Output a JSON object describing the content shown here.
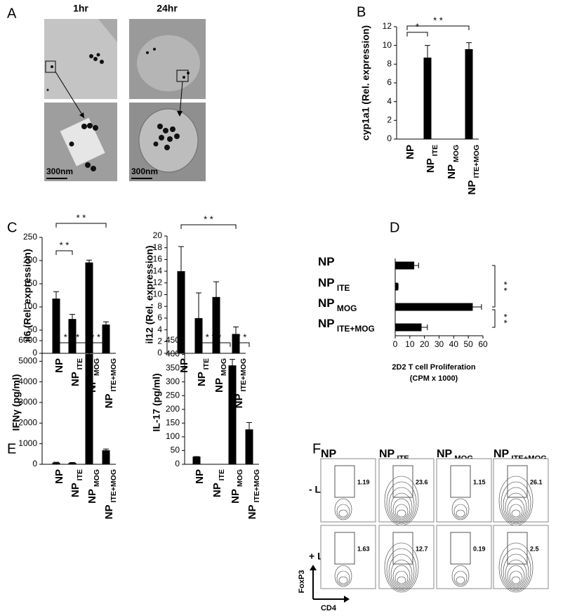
{
  "panel_labels": [
    "A",
    "B",
    "C",
    "D",
    "E",
    "F"
  ],
  "images": {
    "timepoints": [
      "1hr",
      "24hr"
    ],
    "scale_bars": [
      "300nm",
      "300nm"
    ]
  },
  "chart_data": [
    {
      "type": "bar",
      "ylabel": "cyp1a1 (Rel. expression)",
      "categories": [
        "NP",
        "NP ITE",
        "NP MOG",
        "NP ITE+MOG"
      ],
      "values": [
        0,
        8.7,
        0,
        9.6
      ],
      "errors": [
        0,
        1.3,
        0,
        0.7
      ],
      "color": "#000000",
      "ylim": [
        0,
        12
      ],
      "yticks": [
        0,
        2,
        4,
        6,
        8,
        10,
        12
      ],
      "significance": [
        "*",
        "* *"
      ]
    },
    {
      "type": "bar",
      "ylabel": "il6 (Rel. expression)",
      "categories": [
        "NP",
        "NP ITE",
        "NP MOG",
        "NP ITE+MOG"
      ],
      "values": [
        118,
        74,
        196,
        62
      ],
      "errors": [
        15,
        10,
        5,
        6
      ],
      "color": "#000000",
      "ylim": [
        0,
        250
      ],
      "yticks": [
        0,
        50,
        100,
        150,
        200,
        250
      ],
      "significance": [
        "* *",
        "* *"
      ]
    },
    {
      "type": "bar",
      "ylabel": "il12 (Rel. expression)",
      "categories": [
        "NP",
        "NP ITE",
        "NP MOG",
        "NP ITE+MOG"
      ],
      "values": [
        14,
        6,
        9.6,
        3.3
      ],
      "errors": [
        4.2,
        4.3,
        2.6,
        1.2
      ],
      "color": "#000000",
      "ylim": [
        0,
        20
      ],
      "yticks": [
        0,
        2,
        4,
        6,
        8,
        10,
        12,
        14,
        16,
        18,
        20
      ],
      "significance": [
        "* *"
      ]
    },
    {
      "type": "hbar",
      "xlabel": [
        "2D2 T cell  Proliferation",
        "(CPM  x  1000)"
      ],
      "categories": [
        "NP",
        "NP ITE",
        "NP MOG",
        "NP ITE+MOG"
      ],
      "values": [
        13,
        2,
        53,
        18
      ],
      "errors": [
        3,
        0,
        6,
        4
      ],
      "color": "#000000",
      "xlim": [
        0,
        60
      ],
      "xticks": [
        0,
        10,
        20,
        30,
        40,
        50,
        60
      ],
      "significance": [
        "* *",
        "* *"
      ]
    },
    {
      "type": "bar",
      "ylabel": "IFNγ (pg/ml)",
      "categories": [
        "NP",
        "NP ITE",
        "NP MOG",
        "NP ITE+MOG"
      ],
      "values": [
        80,
        70,
        5350,
        680
      ],
      "errors": [
        20,
        15,
        120,
        60
      ],
      "color": "#000000",
      "ylim": [
        0,
        6000
      ],
      "yticks": [
        0,
        1000,
        2000,
        3000,
        4000,
        5000,
        6000
      ],
      "significance": [
        "* * *",
        "* * *"
      ]
    },
    {
      "type": "bar",
      "ylabel": "IL-17 (pg/ml)",
      "categories": [
        "NP",
        "NP ITE",
        "NP MOG",
        "NP ITE+MOG"
      ],
      "values": [
        28,
        0,
        360,
        127
      ],
      "errors": [
        0,
        0,
        22,
        25
      ],
      "color": "#000000",
      "ylim": [
        0,
        450
      ],
      "yticks": [
        0,
        50,
        100,
        150,
        200,
        250,
        300,
        350,
        400,
        450
      ],
      "significance": [
        "* * *",
        "* *"
      ]
    },
    {
      "type": "flow",
      "columns": [
        "NP",
        "NP ITE",
        "NP MOG",
        "NP ITE+MOG"
      ],
      "rows": [
        "- LPS",
        "+ LPS"
      ],
      "gate_percentages": [
        [
          1.19,
          23.6,
          1.15,
          26.1
        ],
        [
          1.63,
          12.7,
          0.19,
          2.5
        ]
      ],
      "ylabel": "FoxP3",
      "xlabel": "CD4"
    }
  ]
}
